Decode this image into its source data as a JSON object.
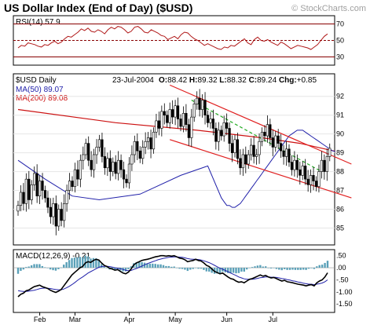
{
  "header": {
    "title": "US Dollar Index (End of Day) ($USD)",
    "watermark": "© StockCharts.com"
  },
  "chart_data": [
    {
      "type": "line",
      "panel": "rsi",
      "label": "RSI(14) 57.9",
      "ylim": [
        20,
        80
      ],
      "ticks": [
        30,
        50,
        70
      ],
      "reference_lines": [
        30,
        50,
        70
      ],
      "colors": {
        "line": "#b01818",
        "reference": "#880000"
      },
      "series": [
        {
          "values": [
            41,
            44,
            43,
            47,
            46,
            45,
            43,
            42,
            45,
            44,
            47,
            49,
            46,
            48,
            52,
            55,
            54,
            57,
            60,
            64,
            62,
            65,
            61,
            60,
            63,
            61,
            58,
            63,
            66,
            64,
            67,
            66,
            63,
            59,
            61,
            66,
            67,
            64,
            60,
            59,
            63,
            61,
            59,
            56,
            55,
            51,
            53,
            55,
            52,
            57,
            60,
            59,
            55,
            52,
            50,
            47,
            44,
            46,
            44,
            42,
            40,
            39,
            42,
            41,
            44,
            43,
            46,
            49,
            52,
            47,
            45,
            51,
            54,
            50,
            49,
            51,
            48,
            46,
            44,
            48,
            46,
            43,
            40,
            42,
            44,
            43,
            42,
            41,
            39,
            42,
            45,
            50,
            55,
            57.9
          ]
        }
      ]
    },
    {
      "type": "candlestick",
      "panel": "price",
      "label": "$USD Daily",
      "date": "23-Jul-2004",
      "ohlc_readout": {
        "O": "88.42",
        "H": "89.32",
        "L": "88.32",
        "C": "89.24",
        "Chg": "+0.85"
      },
      "ylim": [
        84.1,
        93.2
      ],
      "ticks": [
        85,
        86,
        87,
        88,
        89,
        90,
        91,
        92
      ],
      "x_labels": [
        {
          "label": "Feb",
          "index": 8
        },
        {
          "label": "Mar",
          "index": 21
        },
        {
          "label": "Apr",
          "index": 41
        },
        {
          "label": "May",
          "index": 58
        },
        {
          "label": "Jun",
          "index": 77
        },
        {
          "label": "Jul",
          "index": 94
        }
      ],
      "closes": [
        86.2,
        86.9,
        86.3,
        87.6,
        86.5,
        87.3,
        87.9,
        86.7,
        87.5,
        87.0,
        86.6,
        86.1,
        85.6,
        86.3,
        85.1,
        86.0,
        85.4,
        86.3,
        87.0,
        87.5,
        87.2,
        88.1,
        87.6,
        88.6,
        88.9,
        89.5,
        88.6,
        88.1,
        88.9,
        89.3,
        89.7,
        88.8,
        88.2,
        88.7,
        88.0,
        88.5,
        87.9,
        88.6,
        88.1,
        87.6,
        87.4,
        88.4,
        88.9,
        89.6,
        89.1,
        88.7,
        89.3,
        89.6,
        89.8,
        89.2,
        90.1,
        90.7,
        90.3,
        91.2,
        91.0,
        90.6,
        91.3,
        90.9,
        91.5,
        90.8,
        90.4,
        91.1,
        90.5,
        89.8,
        90.9,
        91.6,
        91.9,
        91.3,
        91.8,
        91.0,
        90.6,
        90.8,
        90.3,
        89.6,
        90.2,
        89.9,
        90.6,
        90.3,
        89.5,
        89.0,
        89.7,
        88.7,
        88.2,
        88.9,
        88.4,
        88.9,
        89.4,
        88.8,
        88.9,
        89.6,
        90.1,
        89.9,
        90.5,
        89.8,
        89.3,
        89.9,
        89.5,
        89.1,
        88.8,
        89.2,
        88.5,
        88.1,
        88.6,
        88.1,
        87.8,
        88.3,
        87.6,
        87.3,
        87.8,
        87.5,
        87.2,
        88.0,
        88.6,
        88.0,
        88.8,
        89.24
      ],
      "ma_values": [
        {
          "name": "MA(50)",
          "value": "89.07"
        },
        {
          "name": "MA(200)",
          "value": "89.08"
        }
      ],
      "ma50": [
        86.6,
        86.4,
        86.2,
        86.2,
        86.1,
        86.1,
        86.2,
        86.3,
        86.5,
        86.7,
        86.9,
        87.1,
        87.3,
        87.5,
        87.7,
        87.9,
        88.1,
        88.3,
        88.5,
        88.7,
        88.9,
        89.1,
        89.3,
        89.5,
        89.7,
        89.9,
        90.0,
        90.1,
        90.2,
        90.2,
        90.2,
        90.1,
        90.0,
        89.9,
        89.8,
        89.7,
        89.6,
        89.5,
        89.4,
        89.3,
        89.2,
        89.1,
        89.07
      ],
      "ma50_start_index": 75,
      "ma200": [
        [
          0,
          91.3
        ],
        [
          36,
          90.6
        ],
        [
          66,
          90.2
        ],
        [
          90,
          89.8
        ],
        [
          104,
          89.5
        ],
        [
          117,
          89.08
        ]
      ],
      "trendlines": [
        {
          "from": [
            56,
            92.6
          ],
          "to": [
            123,
            88.4
          ],
          "color": "#e02020"
        },
        {
          "from": [
            56,
            89.7
          ],
          "to": [
            123,
            86.6
          ],
          "color": "#e02020"
        },
        {
          "from": [
            64,
            91.8
          ],
          "to": [
            112,
            88.0
          ],
          "color": "#22aa22",
          "dashed": true
        }
      ],
      "colors": {
        "up": "#ffffff",
        "down": "#000000",
        "ma50": "#2222aa",
        "ma200": "#cc1111"
      }
    },
    {
      "type": "line",
      "panel": "macd",
      "label": "MACD(12,26,9) -0.21",
      "ylim": [
        -1.85,
        0.75
      ],
      "ticks": [
        {
          "value": 0.5,
          "label": ".50"
        },
        {
          "value": 0,
          "label": ".00"
        },
        {
          "value": -0.5,
          "label": "-.50"
        },
        {
          "value": -1.0,
          "label": "-1.00"
        },
        {
          "value": -1.5,
          "label": "-1.50"
        }
      ],
      "series": [
        {
          "name": "MACD",
          "values": [
            -1.2,
            -1.1,
            -1.05,
            -0.95,
            -0.92,
            -0.85,
            -0.78,
            -0.75,
            -0.72,
            -0.78,
            -0.82,
            -0.86,
            -0.93,
            -0.98,
            -1.02,
            -0.97,
            -0.9,
            -0.75,
            -0.6,
            -0.45,
            -0.3,
            -0.2,
            -0.1,
            0.0,
            0.05,
            0.2,
            0.25,
            0.22,
            0.3,
            0.35,
            0.32,
            0.2,
            0.1,
            0.05,
            -0.02,
            -0.05,
            -0.1,
            -0.08,
            -0.15,
            -0.22,
            -0.25,
            -0.18,
            -0.05,
            0.12,
            0.2,
            0.25,
            0.3,
            0.33,
            0.35,
            0.38,
            0.42,
            0.45,
            0.47,
            0.5,
            0.5,
            0.48,
            0.5,
            0.48,
            0.5,
            0.45,
            0.4,
            0.38,
            0.33,
            0.25,
            0.28,
            0.3,
            0.35,
            0.3,
            0.28,
            0.2,
            0.1,
            0.05,
            -0.05,
            -0.15,
            -0.2,
            -0.25,
            -0.22,
            -0.3,
            -0.38,
            -0.45,
            -0.48,
            -0.55,
            -0.6,
            -0.58,
            -0.62,
            -0.55,
            -0.48,
            -0.45,
            -0.4,
            -0.35,
            -0.3,
            -0.35,
            -0.32,
            -0.38,
            -0.42,
            -0.4,
            -0.45,
            -0.5,
            -0.55,
            -0.52,
            -0.58,
            -0.6,
            -0.62,
            -0.65,
            -0.68,
            -0.7,
            -0.72,
            -0.75,
            -0.72,
            -0.7,
            -0.75,
            -0.62,
            -0.55,
            -0.5,
            -0.38,
            -0.21
          ]
        },
        {
          "name": "Signal",
          "values": [
            -0.95,
            -0.97,
            -0.98,
            -0.98,
            -0.97,
            -0.95,
            -0.93,
            -0.9,
            -0.87,
            -0.85,
            -0.84,
            -0.85,
            -0.86,
            -0.88,
            -0.9,
            -0.91,
            -0.91,
            -0.88,
            -0.83,
            -0.77,
            -0.7,
            -0.62,
            -0.53,
            -0.45,
            -0.38,
            -0.3,
            -0.22,
            -0.16,
            -0.1,
            -0.04,
            0.02,
            0.05,
            0.06,
            0.06,
            0.05,
            0.03,
            0.0,
            -0.02,
            -0.04,
            -0.07,
            -0.1,
            -0.12,
            -0.11,
            -0.07,
            -0.03,
            0.02,
            0.07,
            0.12,
            0.17,
            0.21,
            0.25,
            0.29,
            0.33,
            0.36,
            0.39,
            0.41,
            0.43,
            0.44,
            0.45,
            0.45,
            0.44,
            0.43,
            0.41,
            0.38,
            0.36,
            0.35,
            0.35,
            0.34,
            0.32,
            0.29,
            0.25,
            0.21,
            0.16,
            0.1,
            0.04,
            -0.02,
            -0.06,
            -0.11,
            -0.16,
            -0.22,
            -0.27,
            -0.32,
            -0.38,
            -0.42,
            -0.46,
            -0.48,
            -0.48,
            -0.48,
            -0.46,
            -0.44,
            -0.41,
            -0.4,
            -0.38,
            -0.38,
            -0.39,
            -0.39,
            -0.4,
            -0.42,
            -0.45,
            -0.46,
            -0.49,
            -0.51,
            -0.54,
            -0.56,
            -0.59,
            -0.61,
            -0.64,
            -0.66,
            -0.68,
            -0.68,
            -0.7,
            -0.68,
            -0.66,
            -0.63,
            -0.58,
            -0.5
          ]
        }
      ],
      "colors": {
        "macd": "#000000",
        "signal": "#2222aa",
        "histogram": "#5aa0b8"
      }
    }
  ]
}
